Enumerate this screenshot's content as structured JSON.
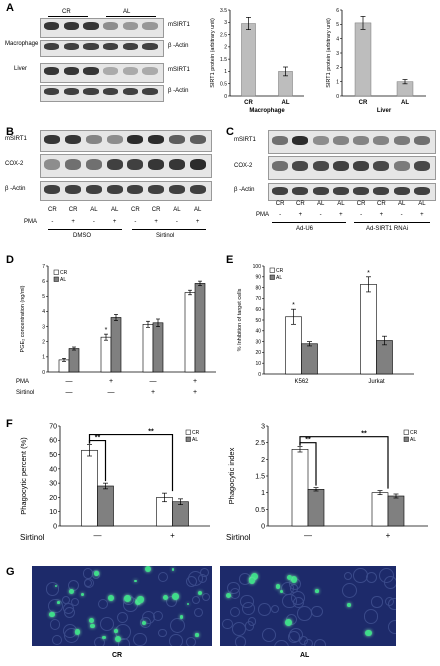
{
  "panel_letters": [
    "A",
    "B",
    "C",
    "D",
    "E",
    "F",
    "G"
  ],
  "A": {
    "blot_group_labels": [
      "CR",
      "AL"
    ],
    "rows": [
      {
        "tissue": "Macrophage",
        "protein": "mSIRT1"
      },
      {
        "tissue": "",
        "protein": "β -Actin"
      },
      {
        "tissue": "Liver",
        "protein": "mSIRT1"
      },
      {
        "tissue": "",
        "protein": "β -Actin"
      }
    ]
  },
  "B": {
    "proteins": [
      "mSIRT1",
      "COX-2",
      "β -Actin"
    ],
    "lanes": [
      "CR",
      "CR",
      "AL",
      "AL",
      "CR",
      "CR",
      "AL",
      "AL"
    ],
    "pma_label": "PMA",
    "pma": [
      "-",
      "+",
      "-",
      "+",
      "-",
      "+",
      "-",
      "+"
    ],
    "groups": [
      "DMSO",
      "Sirtinol"
    ]
  },
  "C": {
    "proteins": [
      "mSIRT1",
      "COX-2",
      "β -Actin"
    ],
    "lanes": [
      "CR",
      "CR",
      "AL",
      "AL",
      "CR",
      "CR",
      "AL",
      "AL"
    ],
    "pma_label": "PMA",
    "pma": [
      "-",
      "+",
      "-",
      "+",
      "-",
      "+",
      "-",
      "+"
    ],
    "groups": [
      "Ad-U6",
      "Ad-SIRT1 RNAi"
    ]
  },
  "G": {
    "labels": [
      "CR",
      "AL"
    ]
  },
  "chart_data": [
    {
      "id": "A-macrophage",
      "type": "bar",
      "categories": [
        "CR",
        "AL"
      ],
      "values": [
        2.95,
        1.0
      ],
      "errors": [
        0.25,
        0.18
      ],
      "xlabel": "Macrophage",
      "ylabel": "SIRT1 protein (arbitrary unit)",
      "ylim": [
        0,
        3.5
      ],
      "yticks": [
        0,
        0.5,
        1,
        1.5,
        2,
        2.5,
        3,
        3.5
      ]
    },
    {
      "id": "A-liver",
      "type": "bar",
      "categories": [
        "CR",
        "AL"
      ],
      "values": [
        5.1,
        1.0
      ],
      "errors": [
        0.45,
        0.15
      ],
      "xlabel": "Liver",
      "ylabel": "SIRT1 protein (arbitrary unit)",
      "ylim": [
        0,
        6
      ],
      "yticks": [
        0,
        1,
        2,
        3,
        4,
        5,
        6
      ]
    },
    {
      "id": "D",
      "type": "bar",
      "groups": 4,
      "series": [
        {
          "name": "CR",
          "values": [
            0.8,
            2.3,
            3.15,
            5.25
          ],
          "errors": [
            0.1,
            0.2,
            0.2,
            0.15
          ]
        },
        {
          "name": "AL",
          "values": [
            1.55,
            3.6,
            3.25,
            5.85
          ],
          "errors": [
            0.1,
            0.2,
            0.25,
            0.15
          ]
        }
      ],
      "ylabel": "PGE₂ concentration (ng/ml)",
      "ylim": [
        0,
        7
      ],
      "yticks": [
        0,
        1,
        2,
        3,
        4,
        5,
        6,
        7
      ],
      "row_labels": [
        "PMA",
        "Sirtinol"
      ],
      "pma": [
        "—",
        "+",
        "—",
        "+"
      ],
      "sirtinol": [
        "—",
        "—",
        "+",
        "+"
      ],
      "annotations": [
        {
          "group": 1,
          "text": "*"
        }
      ],
      "legend": "top-left"
    },
    {
      "id": "E",
      "type": "bar",
      "categories": [
        "K562",
        "Jurkat"
      ],
      "series": [
        {
          "name": "CR",
          "values": [
            53,
            83
          ],
          "errors": [
            7,
            7
          ]
        },
        {
          "name": "AL",
          "values": [
            28,
            31
          ],
          "errors": [
            2,
            4
          ]
        }
      ],
      "ylabel": "% Inhibition of target cells",
      "ylim": [
        0,
        100
      ],
      "yticks": [
        0,
        10,
        20,
        30,
        40,
        50,
        60,
        70,
        80,
        90,
        100
      ],
      "annotations": [
        {
          "group": 0,
          "text": "*"
        },
        {
          "group": 1,
          "text": "*"
        }
      ],
      "legend": "top-left"
    },
    {
      "id": "F-percent",
      "type": "bar",
      "series": [
        {
          "name": "CR",
          "values": [
            53,
            20
          ],
          "errors": [
            4,
            3
          ]
        },
        {
          "name": "AL",
          "values": [
            28,
            17
          ],
          "errors": [
            2,
            2
          ]
        }
      ],
      "ylabel": "Phagocytic percent (%)",
      "ylim": [
        0,
        70
      ],
      "yticks": [
        0,
        10,
        20,
        30,
        40,
        50,
        60,
        70
      ],
      "row_label": "Sirtinol",
      "sirtinol": [
        "—",
        "+"
      ],
      "significance": [
        "**",
        "**"
      ],
      "legend": "top-right"
    },
    {
      "id": "F-index",
      "type": "bar",
      "series": [
        {
          "name": "CR",
          "values": [
            2.3,
            1.0
          ],
          "errors": [
            0.08,
            0.06
          ]
        },
        {
          "name": "AL",
          "values": [
            1.1,
            0.9
          ],
          "errors": [
            0.05,
            0.06
          ]
        }
      ],
      "ylabel": "Phagocytic index",
      "ylim": [
        0,
        3
      ],
      "yticks": [
        0,
        0.5,
        1,
        1.5,
        2,
        2.5,
        3
      ],
      "row_label": "Sirtinol",
      "sirtinol": [
        "—",
        "+"
      ],
      "significance": [
        "**",
        "**"
      ],
      "legend": "top-right"
    }
  ]
}
